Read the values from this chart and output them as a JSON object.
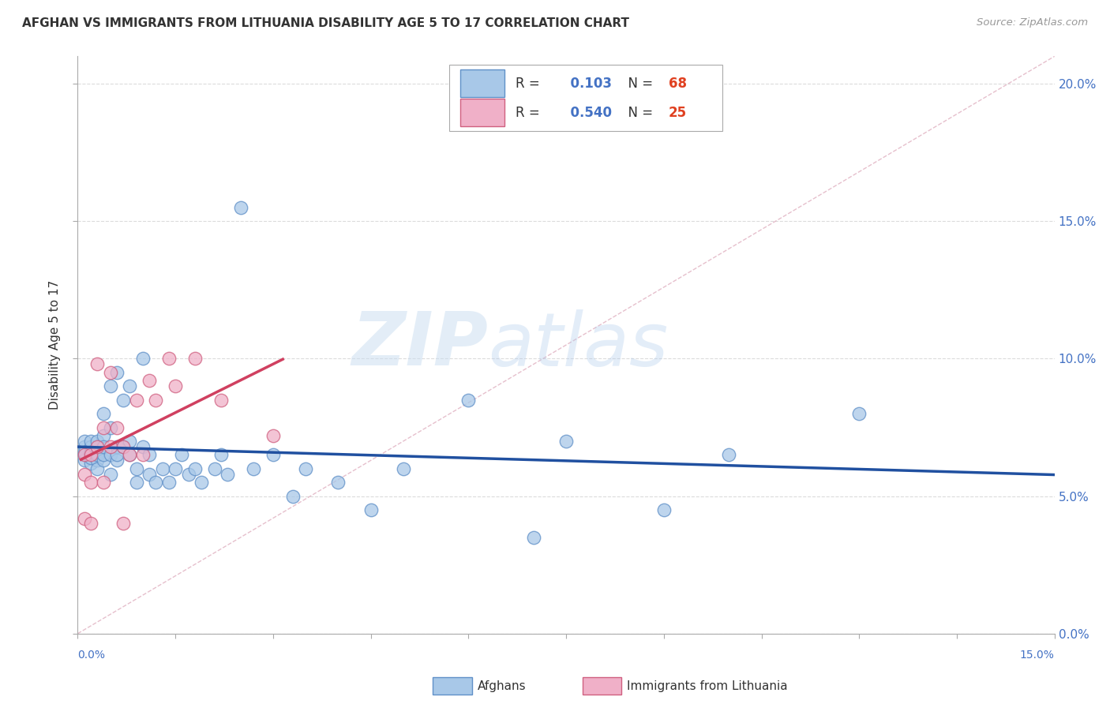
{
  "title": "AFGHAN VS IMMIGRANTS FROM LITHUANIA DISABILITY AGE 5 TO 17 CORRELATION CHART",
  "source": "Source: ZipAtlas.com",
  "ylabel": "Disability Age 5 to 17",
  "legend_afghans": "Afghans",
  "legend_lithuania": "Immigrants from Lithuania",
  "R_afghans": 0.103,
  "N_afghans": 68,
  "R_lithuania": 0.54,
  "N_lithuania": 25,
  "xlim": [
    0.0,
    0.15
  ],
  "ylim": [
    0.0,
    0.21
  ],
  "yticks": [
    0.0,
    0.05,
    0.1,
    0.15,
    0.2
  ],
  "color_afghans": "#a8c8e8",
  "color_afghans_edge": "#6090c8",
  "color_afghans_line": "#2050a0",
  "color_lithuania": "#f0b0c8",
  "color_lithuania_edge": "#d06080",
  "color_lithuania_line": "#d04060",
  "color_diagonal": "#d0a0b0",
  "background": "#ffffff",
  "watermark_zip": "ZIP",
  "watermark_atlas": "atlas",
  "afghans_x": [
    0.001,
    0.001,
    0.001,
    0.001,
    0.001,
    0.002,
    0.002,
    0.002,
    0.002,
    0.002,
    0.002,
    0.002,
    0.003,
    0.003,
    0.003,
    0.003,
    0.003,
    0.003,
    0.003,
    0.004,
    0.004,
    0.004,
    0.004,
    0.004,
    0.005,
    0.005,
    0.005,
    0.005,
    0.006,
    0.006,
    0.006,
    0.006,
    0.007,
    0.007,
    0.008,
    0.008,
    0.008,
    0.009,
    0.009,
    0.01,
    0.01,
    0.011,
    0.011,
    0.012,
    0.013,
    0.014,
    0.015,
    0.016,
    0.017,
    0.018,
    0.019,
    0.021,
    0.022,
    0.023,
    0.025,
    0.027,
    0.03,
    0.033,
    0.035,
    0.04,
    0.045,
    0.05,
    0.06,
    0.07,
    0.075,
    0.09,
    0.1,
    0.12
  ],
  "afghans_y": [
    0.068,
    0.065,
    0.07,
    0.063,
    0.066,
    0.064,
    0.068,
    0.065,
    0.062,
    0.07,
    0.066,
    0.064,
    0.065,
    0.068,
    0.063,
    0.06,
    0.066,
    0.07,
    0.065,
    0.063,
    0.08,
    0.072,
    0.065,
    0.068,
    0.09,
    0.065,
    0.058,
    0.075,
    0.095,
    0.068,
    0.063,
    0.065,
    0.085,
    0.068,
    0.09,
    0.07,
    0.065,
    0.055,
    0.06,
    0.1,
    0.068,
    0.065,
    0.058,
    0.055,
    0.06,
    0.055,
    0.06,
    0.065,
    0.058,
    0.06,
    0.055,
    0.06,
    0.065,
    0.058,
    0.155,
    0.06,
    0.065,
    0.05,
    0.06,
    0.055,
    0.045,
    0.06,
    0.085,
    0.035,
    0.07,
    0.045,
    0.065,
    0.08
  ],
  "lithuania_x": [
    0.001,
    0.001,
    0.001,
    0.002,
    0.002,
    0.002,
    0.003,
    0.003,
    0.004,
    0.004,
    0.005,
    0.005,
    0.006,
    0.007,
    0.007,
    0.008,
    0.009,
    0.01,
    0.011,
    0.012,
    0.014,
    0.015,
    0.018,
    0.022,
    0.03
  ],
  "lithuania_y": [
    0.065,
    0.058,
    0.042,
    0.065,
    0.055,
    0.04,
    0.098,
    0.068,
    0.075,
    0.055,
    0.068,
    0.095,
    0.075,
    0.04,
    0.068,
    0.065,
    0.085,
    0.065,
    0.092,
    0.085,
    0.1,
    0.09,
    0.1,
    0.085,
    0.072
  ]
}
